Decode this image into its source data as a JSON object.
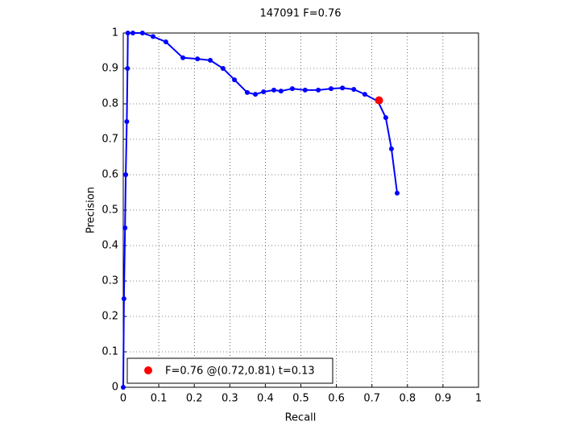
{
  "chart_data": {
    "type": "line",
    "title": "147091 F=0.76",
    "xlabel": "Recall",
    "ylabel": "Precision",
    "xlim": [
      0,
      1
    ],
    "ylim": [
      0,
      1
    ],
    "xticks": [
      0,
      0.1,
      0.2,
      0.3,
      0.4,
      0.5,
      0.6,
      0.7,
      0.8,
      0.9,
      1
    ],
    "yticks": [
      0,
      0.1,
      0.2,
      0.3,
      0.4,
      0.5,
      0.6,
      0.7,
      0.8,
      0.9,
      1
    ],
    "grid": true,
    "legend": "lower left",
    "series": [
      {
        "color": "#0000ff",
        "x": [
          0,
          0.002,
          0.005,
          0.007,
          0.01,
          0.012,
          0.013,
          0.027,
          0.054,
          0.084,
          0.12,
          0.168,
          0.209,
          0.245,
          0.281,
          0.313,
          0.349,
          0.372,
          0.395,
          0.424,
          0.444,
          0.476,
          0.512,
          0.549,
          0.585,
          0.617,
          0.649,
          0.68,
          0.717,
          0.739,
          0.755,
          0.771
        ],
        "values": [
          0,
          0.25,
          0.45,
          0.6,
          0.75,
          0.9,
          1.0,
          1.0,
          1.0,
          0.99,
          0.975,
          0.93,
          0.927,
          0.923,
          0.9,
          0.868,
          0.832,
          0.827,
          0.834,
          0.839,
          0.836,
          0.843,
          0.839,
          0.839,
          0.843,
          0.845,
          0.841,
          0.827,
          0.807,
          0.761,
          0.673,
          0.548
        ]
      },
      {
        "name": "F=0.76 @(0.72,0.81) t=0.13",
        "color": "#ff0000",
        "x": [
          0.72
        ],
        "values": [
          0.81
        ]
      }
    ]
  }
}
